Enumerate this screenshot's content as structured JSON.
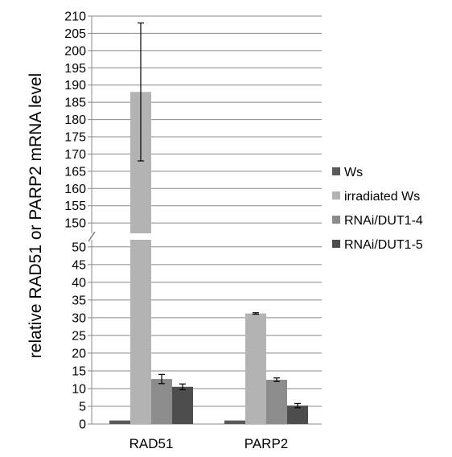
{
  "chart_data": {
    "type": "bar",
    "ylabel": "relative RAD51 or PARP2 mRNA  level",
    "categories": [
      "RAD51",
      "PARP2"
    ],
    "series": [
      {
        "name": "Ws",
        "color": "#595959",
        "values": [
          1,
          1
        ],
        "errors": [
          0,
          0
        ]
      },
      {
        "name": "irradiated Ws",
        "color": "#b3b3b3",
        "values": [
          188,
          31.2
        ],
        "errors": [
          20,
          0.2
        ]
      },
      {
        "name": "RNAi/DUT1-4",
        "color": "#8c8c8c",
        "values": [
          12.7,
          12.5
        ],
        "errors": [
          1.3,
          0.5
        ]
      },
      {
        "name": "RNAi/DUT1-5",
        "color": "#4d4d4d",
        "values": [
          10.5,
          5.2
        ],
        "errors": [
          0.8,
          0.6
        ]
      }
    ],
    "axis_break": true,
    "lower_axis": {
      "ylim": [
        0,
        52
      ],
      "ticks": [
        "0",
        "5",
        "10",
        "15",
        "20",
        "25",
        "30",
        "35",
        "40",
        "45",
        "50"
      ]
    },
    "upper_axis": {
      "ylim": [
        147,
        210
      ],
      "ticks": [
        "150",
        "155",
        "160",
        "165",
        "170",
        "175",
        "180",
        "185",
        "190",
        "195",
        "200",
        "205",
        "210"
      ]
    },
    "grid": true,
    "legend_position": "right"
  }
}
